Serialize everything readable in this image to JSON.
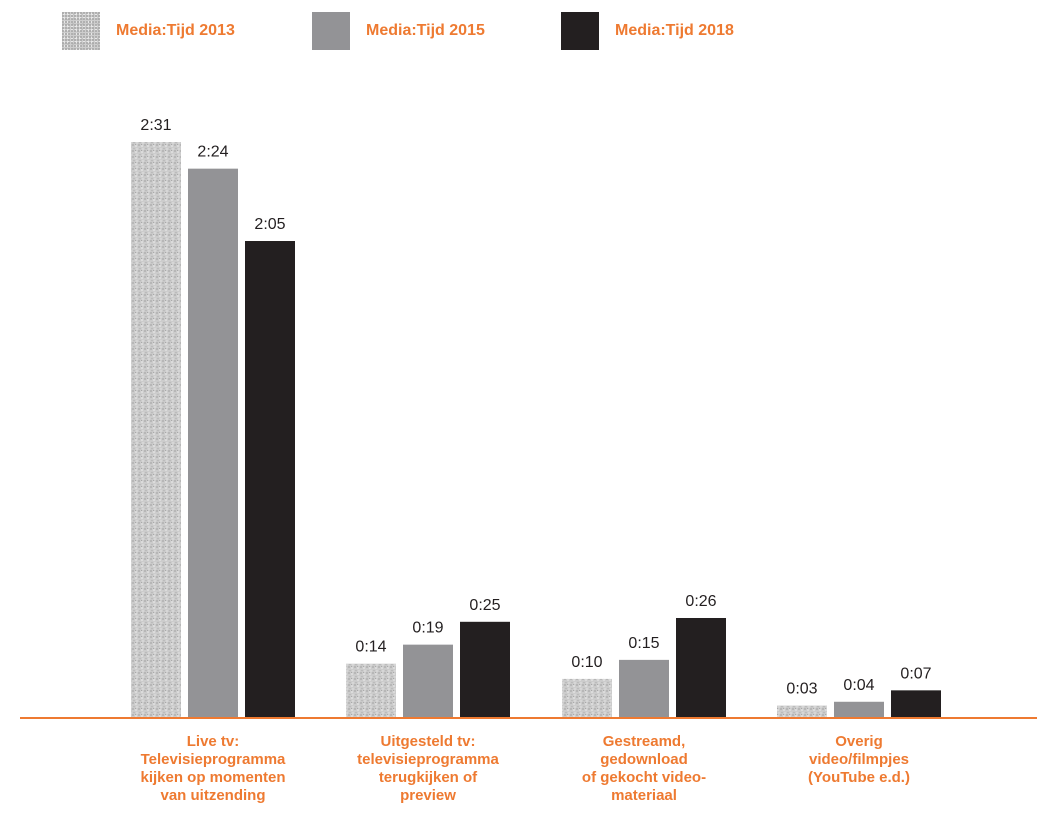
{
  "chart_data": {
    "type": "bar",
    "title": "",
    "xlabel": "",
    "ylabel": "",
    "ylim": [
      0,
      151
    ],
    "legend_position": "top",
    "categories": [
      "Live tv:\nTelevisieprogramma\nkijken op momenten\nvan uitzending",
      "Uitgesteld tv:\ntelevisieprogramma\nterugkijken of\npreview",
      "Gestreamd,\ngedownload\nof gekocht video-\nmateriaal",
      "Overig\nvideo/filmpjes\n(YouTube e.d.)"
    ],
    "series": [
      {
        "name": "Media:Tijd 2013",
        "values": [
          151,
          14,
          10,
          3
        ],
        "labels": [
          "2:31",
          "0:14",
          "0:10",
          "0:03"
        ],
        "color": "#cccccc",
        "pattern": "speckle"
      },
      {
        "name": "Media:Tijd 2015",
        "values": [
          144,
          19,
          15,
          4
        ],
        "labels": [
          "2:24",
          "0:19",
          "0:15",
          "0:04"
        ],
        "color": "#939396"
      },
      {
        "name": "Media:Tijd 2018",
        "values": [
          125,
          25,
          26,
          7
        ],
        "labels": [
          "2:05",
          "0:25",
          "0:26",
          "0:07"
        ],
        "color": "#231f20"
      }
    ],
    "axis_color": "#ee7a31",
    "label_color": "#ee7a31",
    "grid": false
  }
}
